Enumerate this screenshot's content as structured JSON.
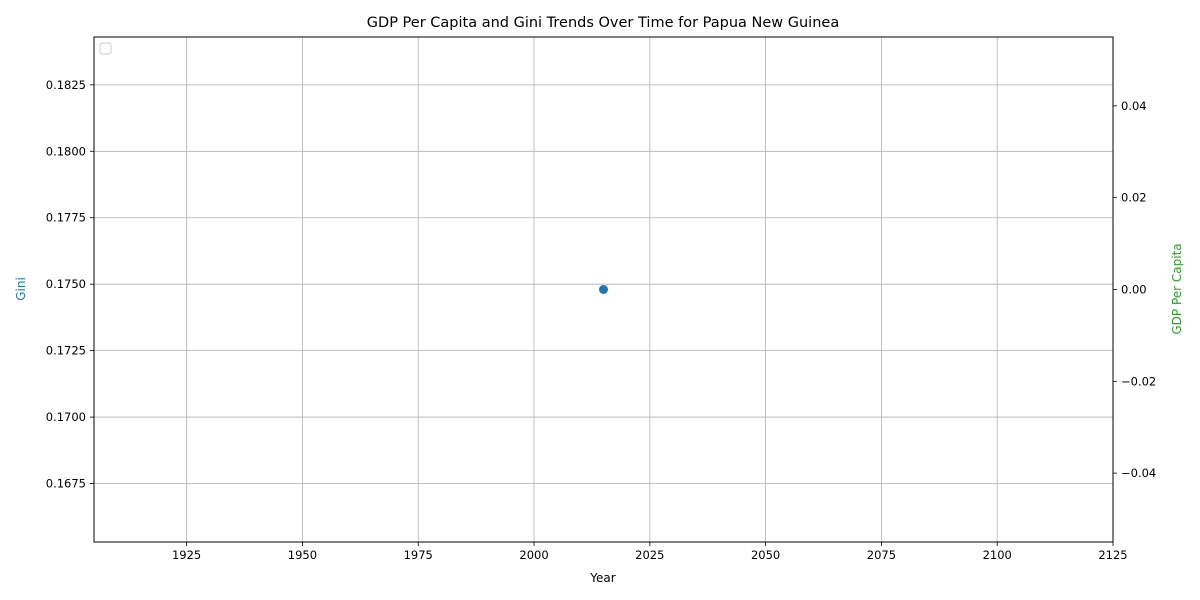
{
  "chart_data": {
    "type": "line",
    "title": "GDP Per Capita and Gini Trends Over Time for Papua New Guinea",
    "xlabel": "Year",
    "ylabel_left": "Gini",
    "ylabel_right": "GDP Per Capita",
    "xlim": [
      1905,
      2125
    ],
    "ylim_left": [
      0.1653,
      0.1843
    ],
    "ylim_right": [
      -0.055,
      0.055
    ],
    "x_ticks": [
      "1925",
      "1950",
      "1975",
      "2000",
      "2025",
      "2050",
      "2075",
      "2100",
      "2125"
    ],
    "y_left_ticks": [
      "0.1675",
      "0.1700",
      "0.1725",
      "0.1750",
      "0.1775",
      "0.1800",
      "0.1825"
    ],
    "y_right_ticks": [
      "−0.04",
      "−0.02",
      "0.00",
      "0.02",
      "0.04"
    ],
    "grid": true,
    "legend_position": "top-left",
    "series": [
      {
        "axis": "left",
        "color": "#1f77b4",
        "marker": "circle",
        "points": [
          {
            "x": 2015,
            "y": 0.1748
          }
        ]
      },
      {
        "axis": "right",
        "color": "#2ca02c",
        "marker": "circle",
        "points": []
      }
    ],
    "colors": {
      "gini": "#1f77b4",
      "gdp": "#2ca02c",
      "axis": "#000000",
      "grid": "#b0b0b0"
    }
  }
}
